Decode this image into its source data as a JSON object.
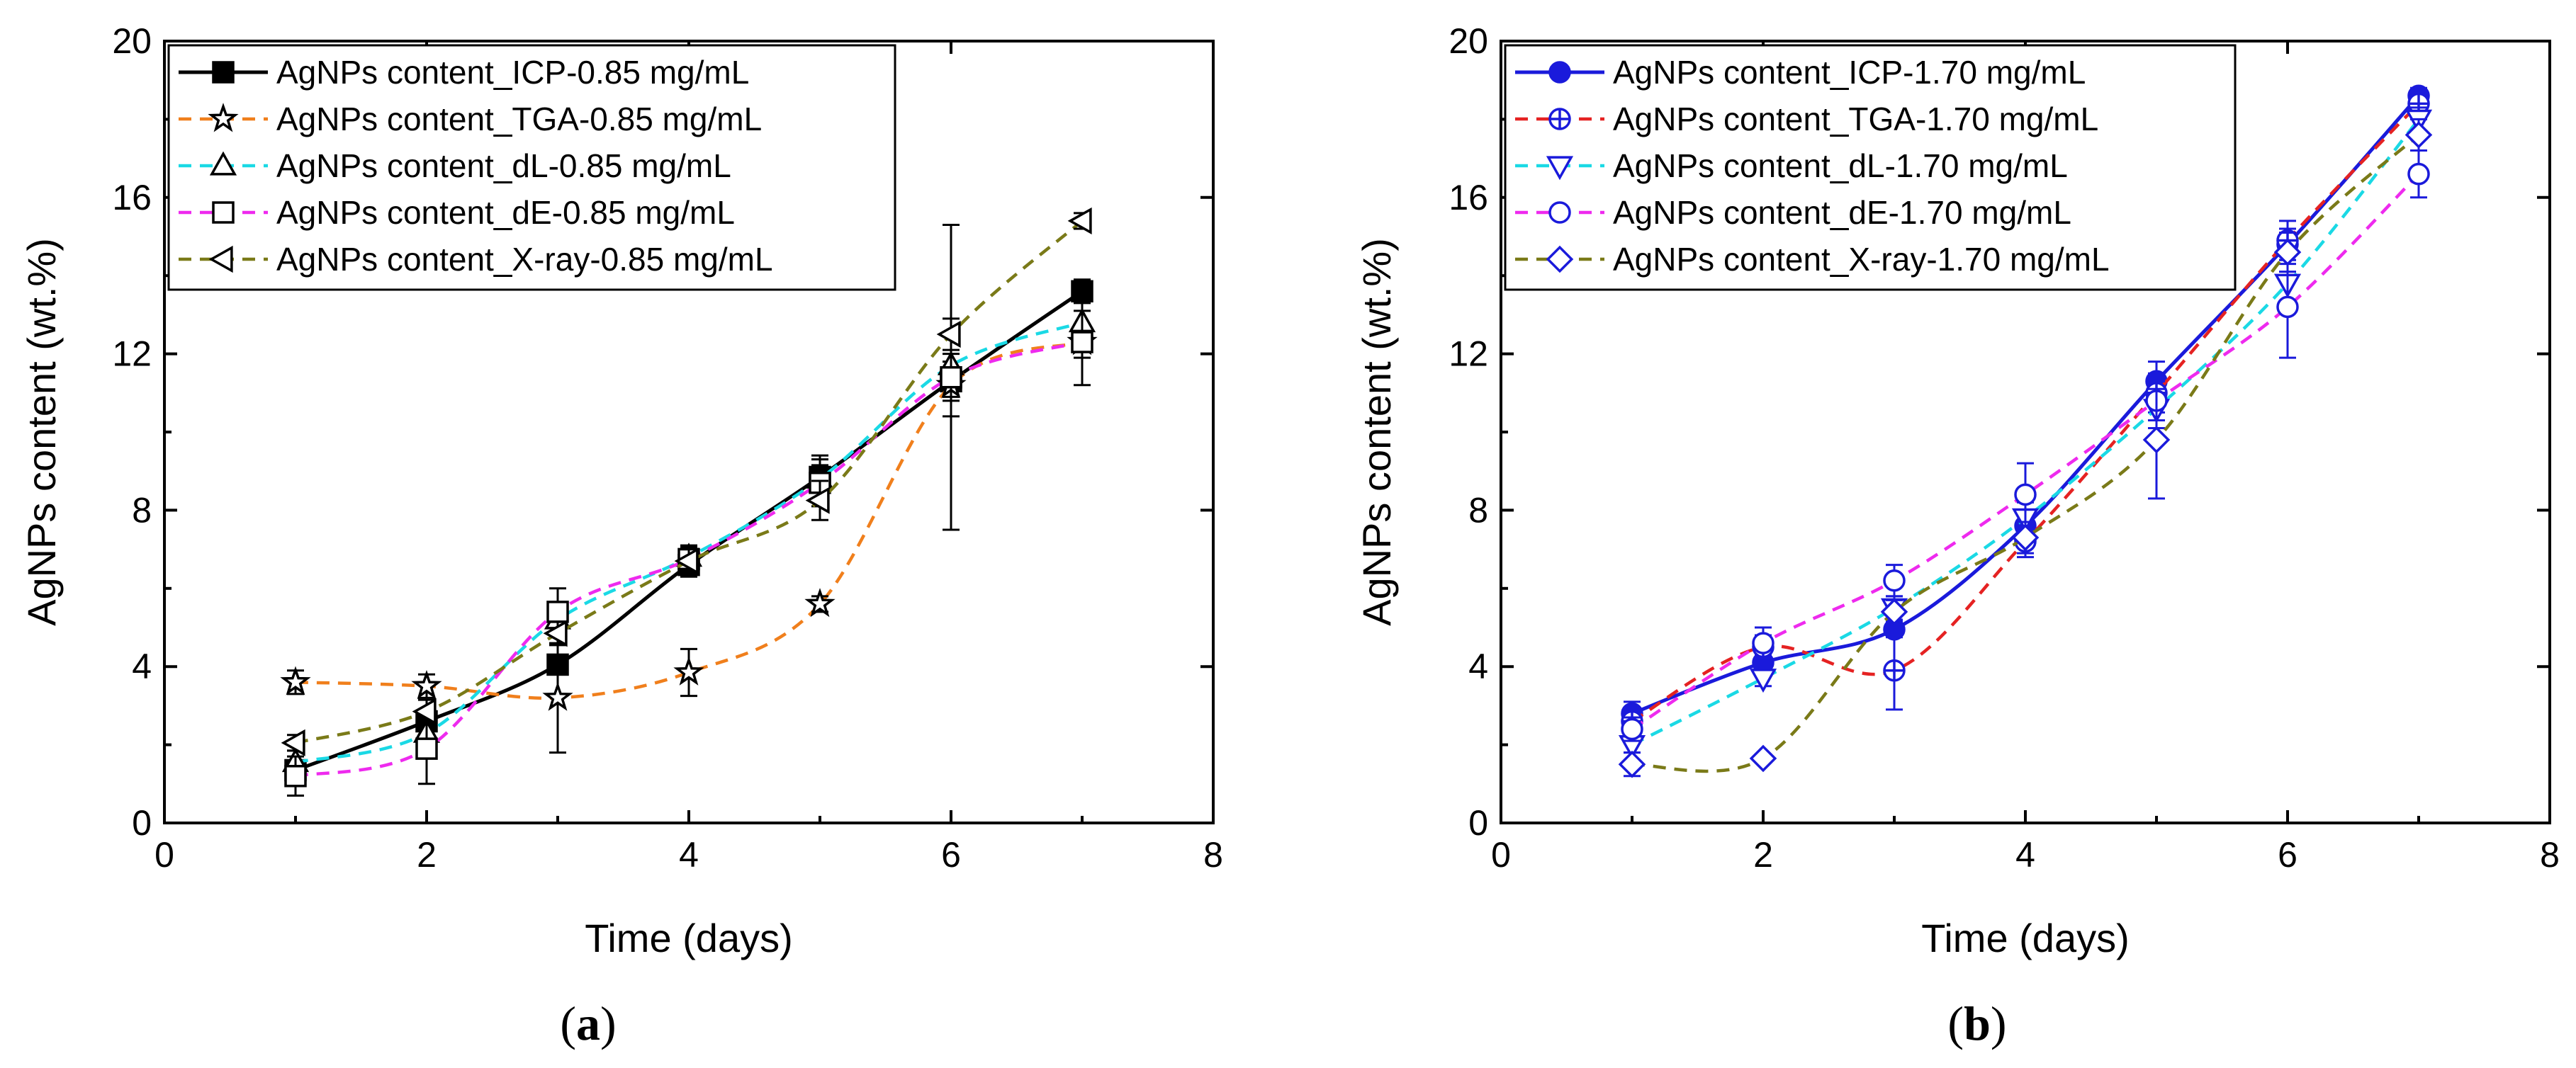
{
  "chart_data": [
    {
      "type": "line",
      "panel_label": "a",
      "xlabel": "Time (days)",
      "ylabel": "AgNPs content (wt.%)",
      "xlim": [
        0,
        8
      ],
      "ylim": [
        0,
        20
      ],
      "xticks": [
        0,
        2,
        4,
        6,
        8
      ],
      "yticks": [
        0,
        4,
        8,
        12,
        16,
        20
      ],
      "legend_position": "top-left",
      "x": [
        1,
        2,
        3,
        4,
        5,
        6,
        7
      ],
      "series": [
        {
          "name": "AgNPs content_ICP-0.85 mg/mL",
          "color": "#000000",
          "dash": "solid",
          "marker": "square-filled",
          "values": [
            1.35,
            2.6,
            4.05,
            6.6,
            8.85,
            11.3,
            13.6
          ],
          "errors": [
            0.2,
            0.2,
            0.2,
            0.3,
            0.3,
            0.5,
            0.3
          ]
        },
        {
          "name": "AgNPs content_TGA-0.85 mg/mL",
          "color": "#f07f1c",
          "dash": "dashed",
          "marker": "star",
          "values": [
            3.6,
            3.5,
            3.2,
            3.85,
            5.6,
            11.2,
            12.3
          ],
          "errors": [
            0.3,
            0.3,
            1.4,
            0.6,
            0.2,
            0.8,
            0.4
          ]
        },
        {
          "name": "AgNPs content_dL-0.85 mg/mL",
          "color": "#1ad9e5",
          "dash": "dashed",
          "marker": "triangle-up",
          "values": [
            1.55,
            2.3,
            5.2,
            6.8,
            8.8,
            11.7,
            12.8
          ],
          "errors": [
            0.3,
            0.3,
            0.3,
            0.3,
            0.6,
            0.8,
            0.3
          ]
        },
        {
          "name": "AgNPs content_dE-0.85 mg/mL",
          "color": "#ee2aee",
          "dash": "dashed",
          "marker": "square-open",
          "values": [
            1.2,
            1.9,
            5.4,
            6.75,
            8.7,
            11.4,
            12.3
          ],
          "errors": [
            0.5,
            0.9,
            0.6,
            0.3,
            0.6,
            3.9,
            1.1
          ]
        },
        {
          "name": "AgNPs content_X-ray-0.85 mg/mL",
          "color": "#7a7a18",
          "dash": "dashed",
          "marker": "triangle-left",
          "values": [
            2.05,
            2.85,
            4.85,
            6.7,
            8.25,
            12.5,
            15.4
          ],
          "errors": [
            0.2,
            0.3,
            0.3,
            0.3,
            0.5,
            0.4,
            0.2
          ]
        }
      ]
    },
    {
      "type": "line",
      "panel_label": "b",
      "xlabel": "Time (days)",
      "ylabel": "AgNPs content (wt.%)",
      "xlim": [
        0,
        8
      ],
      "ylim": [
        0,
        20
      ],
      "xticks": [
        0,
        2,
        4,
        6,
        8
      ],
      "yticks": [
        0,
        4,
        8,
        12,
        16,
        20
      ],
      "legend_position": "top-left",
      "x": [
        1,
        2,
        3,
        4,
        5,
        6,
        7
      ],
      "series": [
        {
          "name": "AgNPs content_ICP-1.70 mg/mL",
          "color": "#1a1adb",
          "dash": "solid",
          "marker": "circle-filled",
          "values": [
            2.8,
            4.1,
            4.95,
            7.6,
            11.3,
            14.8,
            18.6
          ],
          "errors": [
            0.3,
            0.2,
            0.2,
            0.3,
            0.5,
            0.4,
            0.2
          ]
        },
        {
          "name": "AgNPs content_TGA-1.70 mg/mL",
          "color": "#e52222",
          "dash": "dashed",
          "marker": "circle-plus",
          "values": [
            2.6,
            4.5,
            3.9,
            7.2,
            11.0,
            14.9,
            18.4
          ],
          "errors": [
            0.3,
            0.3,
            1.0,
            0.4,
            0.5,
            0.5,
            0.3
          ]
        },
        {
          "name": "AgNPs content_dL-1.70 mg/mL",
          "color": "#1ad9e5",
          "dash": "dashed",
          "marker": "triangle-down",
          "values": [
            2.0,
            3.7,
            5.5,
            7.8,
            10.6,
            13.8,
            18.0
          ],
          "errors": [
            0.2,
            0.2,
            0.3,
            0.4,
            0.5,
            0.5,
            0.3
          ]
        },
        {
          "name": "AgNPs content_dE-1.70 mg/mL",
          "color": "#ee2aee",
          "dash": "dashed",
          "marker": "circle-open",
          "values": [
            2.4,
            4.6,
            6.2,
            8.4,
            10.8,
            13.2,
            16.6
          ],
          "errors": [
            0.3,
            0.4,
            0.4,
            0.8,
            0.5,
            1.3,
            0.6
          ]
        },
        {
          "name": "AgNPs content_X-ray-1.70 mg/mL",
          "color": "#7a7a18",
          "dash": "dashed",
          "marker": "diamond",
          "values": [
            1.5,
            1.65,
            5.4,
            7.3,
            9.8,
            14.6,
            17.6
          ],
          "errors": [
            0.3,
            0.1,
            0.3,
            0.4,
            1.5,
            0.5,
            0.4
          ]
        }
      ]
    }
  ]
}
